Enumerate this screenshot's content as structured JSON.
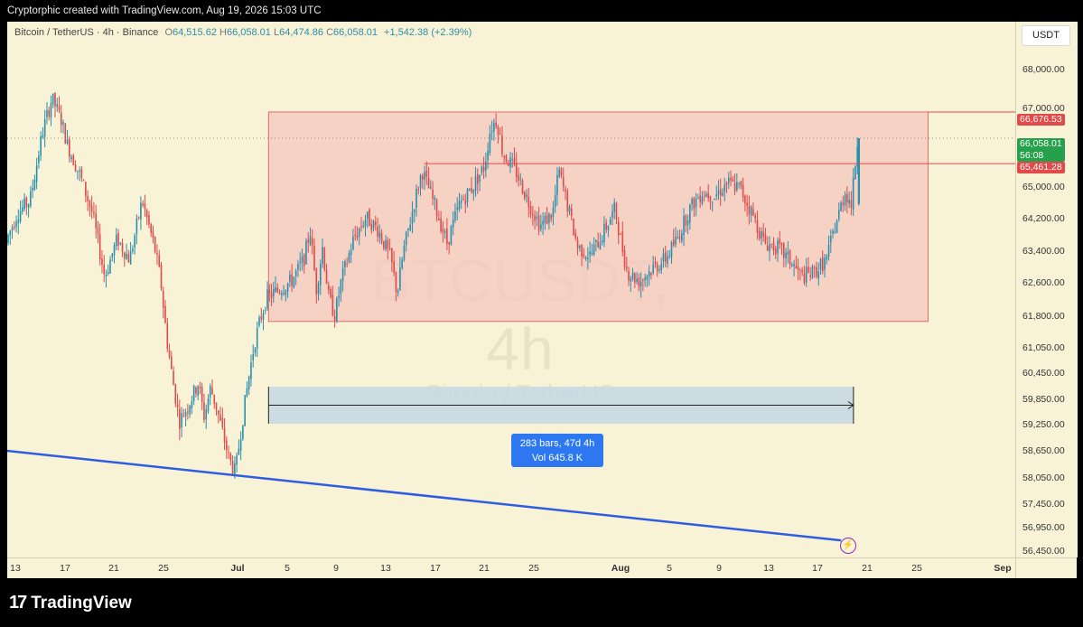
{
  "header": {
    "credit": "Cryptorphic created with TradingView.com, Aug 19, 2026 15:03 UTC"
  },
  "legend": {
    "symbol": "Bitcoin / TetherUS · 4h · Binance",
    "o_label": "O",
    "o_value": "64,515.62",
    "h_label": "H",
    "h_value": "66,058.01",
    "l_label": "L",
    "l_value": "64,474.86",
    "c_label": "C",
    "c_value": "66,058.01",
    "change": "+1,542.38 (+2.39%)"
  },
  "watermark": {
    "ticker": "BTCUSDT, 4h",
    "name": "Bitcoin / TetherUS"
  },
  "price_scale": {
    "currency": "USDT",
    "ticks": [
      "68,000.00",
      "67,000.00",
      "65,000.00",
      "64,200.00",
      "63,400.00",
      "62,600.00",
      "61,800.00",
      "61,050.00",
      "60,450.00",
      "59,850.00",
      "59,250.00",
      "58,650.00",
      "58,050.00",
      "57,450.00",
      "56,950.00",
      "56,450.00"
    ],
    "labels": {
      "range_top": "66,676.53",
      "last_price": "66,058.01",
      "countdown": "56:08",
      "range_line": "65,461.28"
    }
  },
  "time_scale": {
    "ticks": [
      "13",
      "17",
      "21",
      "25",
      "Jul",
      "5",
      "9",
      "13",
      "17",
      "21",
      "25",
      "Aug",
      "5",
      "9",
      "13",
      "17",
      "21",
      "25",
      "Sep"
    ],
    "bold": [
      "Jul",
      "Aug",
      "Sep"
    ]
  },
  "measure": {
    "bars": "283 bars, 47d 4h",
    "volume": "Vol 645.8 K"
  },
  "colors": {
    "background": "#f8f3d6",
    "up": "#2a8fae",
    "down": "#e14a4a",
    "range_fill": "#f5c7bd",
    "range_border": "#e86a6a",
    "trendline": "#2f5ce0",
    "measure_fill": "#c8d8e4",
    "measure_label": "#2d78f0"
  },
  "footer": {
    "brand": "TradingView"
  },
  "chart_data": {
    "type": "candlestick",
    "timeframe": "4h",
    "symbol": "BTCUSDT",
    "price_range": [
      56200,
      68800
    ],
    "x_range": [
      "Jun 12",
      "Sep 1"
    ],
    "path": [
      [
        "2026-06-12T00:00",
        63600
      ],
      [
        "2026-06-13T00:00",
        64300
      ],
      [
        "2026-06-14T00:00",
        64600
      ],
      [
        "2026-06-15T00:00",
        66200
      ],
      [
        "2026-06-15T18:00",
        67000
      ],
      [
        "2026-06-16T12:00",
        66500
      ],
      [
        "2026-06-17T00:00",
        65900
      ],
      [
        "2026-06-18T00:00",
        65200
      ],
      [
        "2026-06-19T00:00",
        64300
      ],
      [
        "2026-06-20T00:00",
        62800
      ],
      [
        "2026-06-21T00:00",
        63700
      ],
      [
        "2026-06-22T00:00",
        63200
      ],
      [
        "2026-06-23T00:00",
        64600
      ],
      [
        "2026-06-24T00:00",
        63500
      ],
      [
        "2026-06-24T12:00",
        62700
      ],
      [
        "2026-06-25T00:00",
        61300
      ],
      [
        "2026-06-25T12:00",
        60300
      ],
      [
        "2026-06-26T00:00",
        59400
      ],
      [
        "2026-06-26T18:00",
        59800
      ],
      [
        "2026-06-27T12:00",
        60300
      ],
      [
        "2026-06-28T00:00",
        59500
      ],
      [
        "2026-06-28T12:00",
        60200
      ],
      [
        "2026-06-29T00:00",
        59700
      ],
      [
        "2026-06-29T12:00",
        59100
      ],
      [
        "2026-06-30T00:00",
        58500
      ],
      [
        "2026-06-30T12:00",
        58200
      ],
      [
        "2026-07-01T00:00",
        59300
      ],
      [
        "2026-07-01T12:00",
        60300
      ],
      [
        "2026-07-02T00:00",
        61200
      ],
      [
        "2026-07-02T12:00",
        61800
      ],
      [
        "2026-07-03T00:00",
        62300
      ],
      [
        "2026-07-04T00:00",
        62500
      ],
      [
        "2026-07-05T00:00",
        62700
      ],
      [
        "2026-07-06T00:00",
        63200
      ],
      [
        "2026-07-06T12:00",
        63900
      ],
      [
        "2026-07-07T00:00",
        62500
      ],
      [
        "2026-07-07T12:00",
        63500
      ],
      [
        "2026-07-08T00:00",
        62300
      ],
      [
        "2026-07-08T12:00",
        61900
      ],
      [
        "2026-07-09T00:00",
        62700
      ],
      [
        "2026-07-10T00:00",
        63700
      ],
      [
        "2026-07-11T00:00",
        64200
      ],
      [
        "2026-07-12T00:00",
        63900
      ],
      [
        "2026-07-13T00:00",
        63200
      ],
      [
        "2026-07-13T12:00",
        62400
      ],
      [
        "2026-07-14T00:00",
        63400
      ],
      [
        "2026-07-15T00:00",
        64700
      ],
      [
        "2026-07-15T12:00",
        65300
      ],
      [
        "2026-07-16T12:00",
        64500
      ],
      [
        "2026-07-17T12:00",
        63600
      ],
      [
        "2026-07-18T12:00",
        64500
      ],
      [
        "2026-07-19T12:00",
        64900
      ],
      [
        "2026-07-20T12:00",
        65400
      ],
      [
        "2026-07-21T00:00",
        66300
      ],
      [
        "2026-07-21T12:00",
        66500
      ],
      [
        "2026-07-22T00:00",
        65700
      ],
      [
        "2026-07-23T00:00",
        65300
      ],
      [
        "2026-07-24T00:00",
        64600
      ],
      [
        "2026-07-25T00:00",
        64000
      ],
      [
        "2026-07-26T00:00",
        64300
      ],
      [
        "2026-07-26T12:00",
        65300
      ],
      [
        "2026-07-27T00:00",
        64700
      ],
      [
        "2026-07-28T00:00",
        63500
      ],
      [
        "2026-07-29T00:00",
        63300
      ],
      [
        "2026-07-30T00:00",
        63800
      ],
      [
        "2026-07-31T00:00",
        64400
      ],
      [
        "2026-07-31T12:00",
        63600
      ],
      [
        "2026-08-01T00:00",
        62900
      ],
      [
        "2026-08-02T00:00",
        62700
      ],
      [
        "2026-08-03T00:00",
        63000
      ],
      [
        "2026-08-04T00:00",
        63200
      ],
      [
        "2026-08-05T00:00",
        63700
      ],
      [
        "2026-08-06T00:00",
        64400
      ],
      [
        "2026-08-07T00:00",
        64800
      ],
      [
        "2026-08-08T00:00",
        64700
      ],
      [
        "2026-08-09T00:00",
        65000
      ],
      [
        "2026-08-10T00:00",
        64900
      ],
      [
        "2026-08-11T00:00",
        64300
      ],
      [
        "2026-08-12T00:00",
        63600
      ],
      [
        "2026-08-13T00:00",
        63500
      ],
      [
        "2026-08-14T00:00",
        63200
      ],
      [
        "2026-08-15T00:00",
        62800
      ],
      [
        "2026-08-16T00:00",
        62900
      ],
      [
        "2026-08-17T00:00",
        63200
      ],
      [
        "2026-08-17T12:00",
        63800
      ],
      [
        "2026-08-18T00:00",
        64300
      ],
      [
        "2026-08-18T12:00",
        64800
      ],
      [
        "2026-08-19T00:00",
        64500
      ],
      [
        "2026-08-19T12:00",
        66058
      ]
    ],
    "annotations": {
      "range_box": {
        "from": "2026-07-03",
        "to": "2026-08-25",
        "high": 66676.53,
        "low": 61750
      },
      "range_line": {
        "from": "2026-07-15T12:00",
        "value": 65461.28
      },
      "last_price": 66058.01,
      "trendline": {
        "from": [
          "2026-06-12",
          58700
        ],
        "to": [
          "2026-08-18",
          56600
        ]
      },
      "date_range": {
        "from": "2026-07-03",
        "to": "2026-08-19",
        "bars": 283,
        "duration": "47d 4h",
        "volume": "645.8 K"
      }
    }
  }
}
